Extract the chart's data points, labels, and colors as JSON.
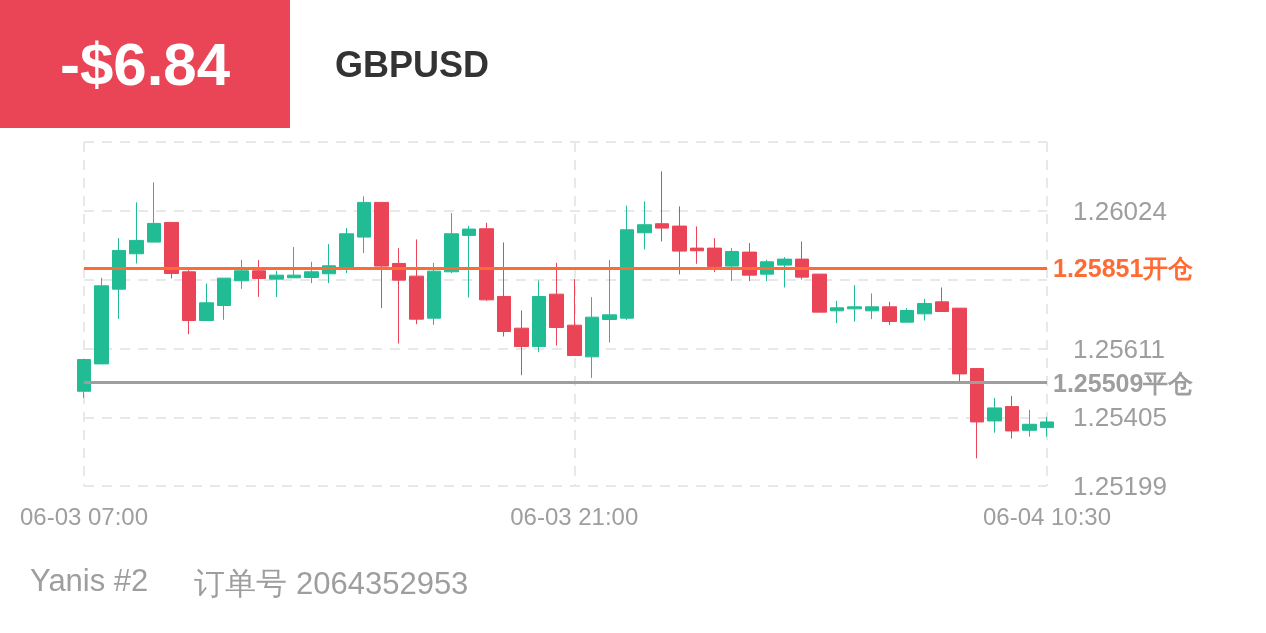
{
  "chart_data": {
    "type": "candlestick",
    "title": "GBPUSD",
    "annotations": [
      "-$6.84",
      "Yanis #2",
      "订单号 2064352953"
    ],
    "categories": [
      "06-03 07:00",
      null,
      null,
      null,
      null,
      null,
      null,
      null,
      null,
      null,
      null,
      null,
      null,
      null,
      null,
      null,
      null,
      null,
      null,
      null,
      null,
      null,
      null,
      null,
      null,
      null,
      null,
      null,
      "06-03 21:00",
      null,
      null,
      null,
      null,
      null,
      null,
      null,
      null,
      null,
      null,
      null,
      null,
      null,
      null,
      null,
      null,
      null,
      null,
      null,
      null,
      null,
      null,
      null,
      null,
      null,
      null,
      "06-04 10:30"
    ],
    "ohlc": [
      [
        1.25483,
        1.25578,
        1.25463,
        1.25578
      ],
      [
        1.25565,
        1.25823,
        1.25565,
        1.25799
      ],
      [
        1.25789,
        1.25942,
        1.257,
        1.25905
      ],
      [
        1.25895,
        1.26049,
        1.25866,
        1.25935
      ],
      [
        1.2593,
        1.26109,
        1.2593,
        1.25986
      ],
      [
        1.25989,
        1.25989,
        1.25821,
        1.25836
      ],
      [
        1.25841,
        1.25846,
        1.25654,
        1.25695
      ],
      [
        1.25695,
        1.25806,
        1.25695,
        1.25748
      ],
      [
        1.2574,
        1.25822,
        1.25697,
        1.25822
      ],
      [
        1.25814,
        1.25877,
        1.2579,
        1.25844
      ],
      [
        1.25844,
        1.25876,
        1.25766,
        1.25821
      ],
      [
        1.25819,
        1.25844,
        1.25765,
        1.25831
      ],
      [
        1.25823,
        1.25915,
        1.25823,
        1.25831
      ],
      [
        1.25824,
        1.25871,
        1.25807,
        1.25841
      ],
      [
        1.25835,
        1.25924,
        1.25807,
        1.25859
      ],
      [
        1.25855,
        1.25972,
        1.25837,
        1.25955
      ],
      [
        1.25945,
        1.26067,
        1.25897,
        1.26049
      ],
      [
        1.26049,
        1.26049,
        1.25732,
        1.25858
      ],
      [
        1.25866,
        1.25912,
        1.25626,
        1.25816
      ],
      [
        1.25828,
        1.25938,
        1.25684,
        1.25699
      ],
      [
        1.25702,
        1.25868,
        1.25682,
        1.25843
      ],
      [
        1.25841,
        1.26017,
        1.25837,
        1.25955
      ],
      [
        1.2595,
        1.25978,
        1.25764,
        1.25969
      ],
      [
        1.2597,
        1.25988,
        1.25754,
        1.25757
      ],
      [
        1.25767,
        1.25929,
        1.25647,
        1.25662
      ],
      [
        1.25672,
        1.25725,
        1.25531,
        1.25617
      ],
      [
        1.25617,
        1.25815,
        1.256,
        1.25767
      ],
      [
        1.25774,
        1.25868,
        1.2562,
        1.25674
      ],
      [
        1.25681,
        1.25819,
        1.2559,
        1.2559
      ],
      [
        1.25586,
        1.25765,
        1.25523,
        1.25705
      ],
      [
        1.25698,
        1.25876,
        1.25629,
        1.25712
      ],
      [
        1.25702,
        1.26039,
        1.25697,
        1.25967
      ],
      [
        1.25958,
        1.26052,
        1.25908,
        1.25982
      ],
      [
        1.25985,
        1.26142,
        1.25932,
        1.25972
      ],
      [
        1.25978,
        1.26037,
        1.25833,
        1.25903
      ],
      [
        1.25912,
        1.25977,
        1.25865,
        1.25904
      ],
      [
        1.25912,
        1.25942,
        1.2584,
        1.25857
      ],
      [
        1.25858,
        1.25912,
        1.25814,
        1.25902
      ],
      [
        1.259,
        1.25927,
        1.25813,
        1.25831
      ],
      [
        1.25834,
        1.25877,
        1.25813,
        1.25871
      ],
      [
        1.25861,
        1.25885,
        1.25794,
        1.25879
      ],
      [
        1.25879,
        1.25932,
        1.25818,
        1.25825
      ],
      [
        1.25834,
        1.25834,
        1.2572,
        1.2572
      ],
      [
        1.25724,
        1.25754,
        1.25687,
        1.25733
      ],
      [
        1.2573,
        1.25801,
        1.25692,
        1.25736
      ],
      [
        1.25724,
        1.25776,
        1.25699,
        1.25736
      ],
      [
        1.25736,
        1.25751,
        1.25681,
        1.25692
      ],
      [
        1.2569,
        1.25732,
        1.2569,
        1.25725
      ],
      [
        1.25715,
        1.2576,
        1.25695,
        1.25746
      ],
      [
        1.25751,
        1.25794,
        1.25722,
        1.25722
      ],
      [
        1.25732,
        1.25732,
        1.2551,
        1.25535
      ],
      [
        1.25551,
        1.25551,
        1.25282,
        1.25391
      ],
      [
        1.25394,
        1.25463,
        1.25359,
        1.25433
      ],
      [
        1.25437,
        1.25469,
        1.25341,
        1.25364
      ],
      [
        1.25366,
        1.25427,
        1.25347,
        1.25384
      ],
      [
        1.25374,
        1.25406,
        1.25347,
        1.25391
      ]
    ],
    "colors": [
      "#22bc94",
      "#22bc94",
      "#22bc94",
      "#22bc94",
      "#22bc94",
      "#ea4556",
      "#ea4556",
      "#22bc94",
      "#22bc94",
      "#22bc94",
      "#ea4556",
      "#22bc94",
      "#22bc94",
      "#22bc94",
      "#22bc94",
      "#22bc94",
      "#22bc94",
      "#ea4556",
      "#ea4556",
      "#ea4556",
      "#22bc94",
      "#22bc94",
      "#22bc94",
      "#ea4556",
      "#ea4556",
      "#ea4556",
      "#22bc94",
      "#ea4556",
      "#ea4556",
      "#22bc94",
      "#22bc94",
      "#22bc94",
      "#22bc94",
      "#ea4556",
      "#ea4556",
      "#ea4556",
      "#ea4556",
      "#22bc94",
      "#ea4556",
      "#22bc94",
      "#22bc94",
      "#ea4556",
      "#ea4556",
      "#22bc94",
      "#22bc94",
      "#22bc94",
      "#ea4556",
      "#22bc94",
      "#22bc94",
      "#ea4556",
      "#ea4556",
      "#ea4556",
      "#22bc94",
      "#ea4556",
      "#22bc94",
      "#22bc94"
    ],
    "ylim": [
      1.25199,
      1.2623
    ],
    "yticks": [
      1.25199,
      1.25405,
      1.25611,
      {
        "value": 1.25817,
        "label": null
      },
      1.26024,
      {
        "value": 1.2623,
        "label": null
      }
    ],
    "ref_lines": [
      {
        "axis": "y",
        "value": 1.25851,
        "label": "1.25851开仓",
        "color": "#ff6b35"
      },
      {
        "axis": "y",
        "value": 1.25509,
        "label": "1.25509平仓",
        "color": "#9e9e9e"
      }
    ],
    "grid": true
  }
}
